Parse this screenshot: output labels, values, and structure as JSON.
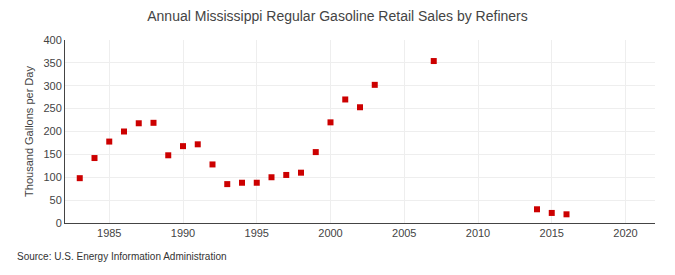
{
  "chart_data": {
    "type": "scatter",
    "title": "Annual Mississippi Regular Gasoline Retail Sales by Refiners",
    "ylabel": "Thousand Gallons per Day",
    "annotations": [
      "Source: U.S. Energy Information Administration"
    ],
    "x": [
      1983,
      1984,
      1985,
      1986,
      1987,
      1988,
      1989,
      1990,
      1991,
      1992,
      1993,
      1994,
      1995,
      1996,
      1997,
      1998,
      1999,
      2000,
      2001,
      2002,
      2003,
      2007,
      2014,
      2015,
      2016
    ],
    "values": [
      98,
      142,
      178,
      200,
      218,
      219,
      148,
      168,
      172,
      128,
      85,
      88,
      88,
      100,
      105,
      110,
      155,
      220,
      270,
      253,
      302,
      354,
      30,
      22,
      19
    ],
    "color": "#cc0000",
    "marker": "square",
    "xlim": [
      1982,
      2022
    ],
    "xticks": [
      1985,
      1990,
      1995,
      2000,
      2005,
      2010,
      2015,
      2020
    ],
    "ylim": [
      0,
      400
    ],
    "yticks": [
      0,
      50,
      100,
      150,
      200,
      250,
      300,
      350,
      400
    ],
    "grid": true
  }
}
